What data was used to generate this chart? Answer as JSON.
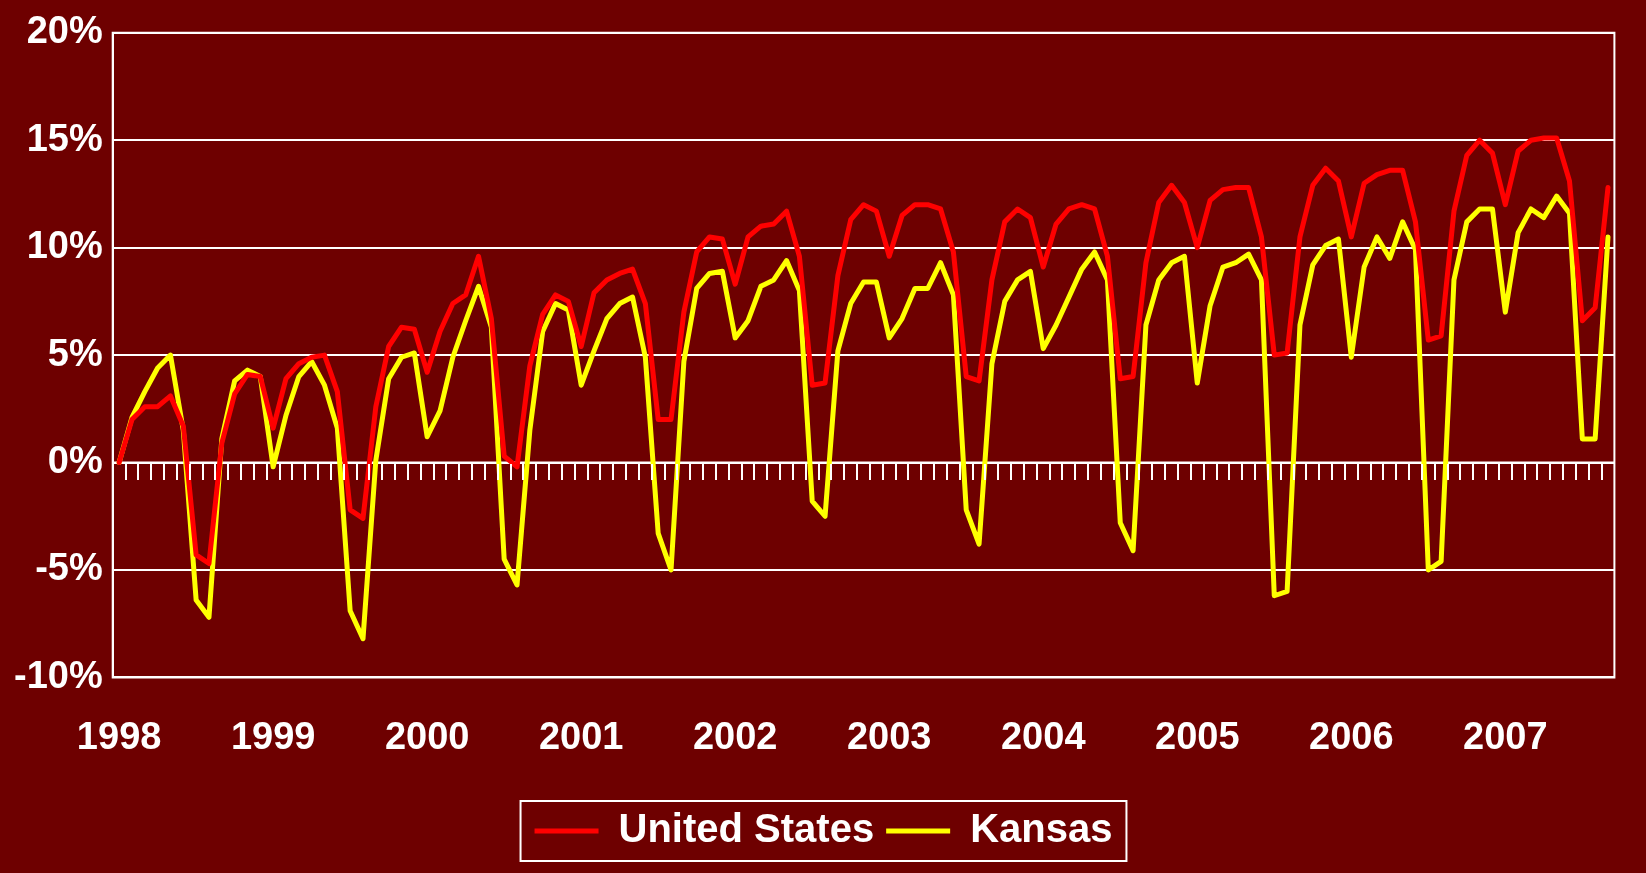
{
  "chart_data": {
    "type": "line",
    "categories": [
      "1998",
      null,
      null,
      null,
      null,
      null,
      null,
      null,
      null,
      null,
      null,
      null,
      "1999",
      null,
      null,
      null,
      null,
      null,
      null,
      null,
      null,
      null,
      null,
      null,
      "2000",
      null,
      null,
      null,
      null,
      null,
      null,
      null,
      null,
      null,
      null,
      null,
      "2001",
      null,
      null,
      null,
      null,
      null,
      null,
      null,
      null,
      null,
      null,
      null,
      "2002",
      null,
      null,
      null,
      null,
      null,
      null,
      null,
      null,
      null,
      null,
      null,
      "2003",
      null,
      null,
      null,
      null,
      null,
      null,
      null,
      null,
      null,
      null,
      null,
      "2004",
      null,
      null,
      null,
      null,
      null,
      null,
      null,
      null,
      null,
      null,
      null,
      "2005",
      null,
      null,
      null,
      null,
      null,
      null,
      null,
      null,
      null,
      null,
      null,
      "2006",
      null,
      null,
      null,
      null,
      null,
      null,
      null,
      null,
      null,
      null,
      null,
      "2007",
      null,
      null,
      null,
      null,
      null,
      null,
      null,
      null
    ],
    "series": [
      {
        "name": "United States",
        "color": "#ff0000",
        "values": [
          0.0,
          2.0,
          2.6,
          2.6,
          3.1,
          1.7,
          -4.3,
          -4.7,
          0.9,
          3.2,
          4.1,
          4.0,
          1.6,
          3.9,
          4.6,
          4.9,
          5.0,
          3.3,
          -2.2,
          -2.6,
          2.6,
          5.4,
          6.3,
          6.2,
          4.2,
          6.1,
          7.4,
          7.8,
          9.6,
          6.7,
          0.3,
          -0.2,
          4.5,
          6.9,
          7.8,
          7.5,
          5.4,
          7.9,
          8.5,
          8.8,
          9.0,
          7.4,
          2.0,
          2.0,
          7.0,
          9.8,
          10.5,
          10.4,
          8.3,
          10.5,
          11.0,
          11.1,
          11.7,
          9.6,
          3.6,
          3.7,
          8.7,
          11.3,
          12.0,
          11.7,
          9.6,
          11.5,
          12.0,
          12.0,
          11.8,
          9.8,
          4.0,
          3.8,
          8.5,
          11.2,
          11.8,
          11.4,
          9.1,
          11.1,
          11.8,
          12.0,
          11.8,
          9.6,
          3.9,
          4.0,
          9.3,
          12.1,
          12.9,
          12.1,
          10.0,
          12.2,
          12.7,
          12.8,
          12.8,
          10.5,
          5.0,
          5.1,
          10.5,
          12.9,
          13.7,
          13.1,
          10.5,
          13.0,
          13.4,
          13.6,
          13.6,
          11.2,
          5.7,
          5.9,
          11.7,
          14.3,
          15.0,
          14.4,
          12.0,
          14.5,
          15.0,
          15.1,
          15.1,
          13.1,
          6.6,
          7.2,
          12.8
        ]
      },
      {
        "name": "Kansas",
        "color": "#ffff00",
        "values": [
          0.0,
          2.1,
          3.3,
          4.4,
          5.0,
          1.5,
          -6.4,
          -7.2,
          1.1,
          3.8,
          4.3,
          4.0,
          -0.2,
          2.2,
          4.0,
          4.7,
          3.6,
          1.6,
          -6.9,
          -8.2,
          0.1,
          3.9,
          4.9,
          5.1,
          1.2,
          2.4,
          4.9,
          6.6,
          8.2,
          6.3,
          -4.5,
          -5.7,
          1.5,
          6.1,
          7.4,
          7.1,
          3.6,
          5.2,
          6.7,
          7.4,
          7.7,
          4.9,
          -3.3,
          -5.0,
          4.7,
          8.1,
          8.8,
          8.9,
          5.8,
          6.6,
          8.2,
          8.5,
          9.4,
          8.0,
          -1.8,
          -2.5,
          5.2,
          7.4,
          8.4,
          8.4,
          5.8,
          6.7,
          8.1,
          8.1,
          9.3,
          7.8,
          -2.2,
          -3.8,
          4.6,
          7.5,
          8.5,
          8.9,
          5.3,
          6.4,
          7.7,
          9.0,
          9.8,
          8.5,
          -2.8,
          -4.1,
          6.4,
          8.5,
          9.3,
          9.6,
          3.7,
          7.3,
          9.1,
          9.3,
          9.7,
          8.5,
          -6.2,
          -6.0,
          6.4,
          9.2,
          10.1,
          10.4,
          4.9,
          9.1,
          10.5,
          9.5,
          11.2,
          9.9,
          -5.0,
          -4.6,
          8.5,
          11.2,
          11.8,
          11.8,
          7.0,
          10.7,
          11.8,
          11.4,
          12.4,
          11.6,
          1.1,
          1.1,
          10.5
        ]
      }
    ],
    "ylim": [
      -10,
      20
    ],
    "yticks": [
      {
        "value": -10,
        "label": "-10%"
      },
      {
        "value": -5,
        "label": "-5%"
      },
      {
        "value": 0,
        "label": "0%"
      },
      {
        "value": 5,
        "label": "5%"
      },
      {
        "value": 10,
        "label": "10%"
      },
      {
        "value": 15,
        "label": "15%"
      },
      {
        "value": 20,
        "label": "20%"
      }
    ],
    "grid": "y",
    "legend": "bottom",
    "marker": "none",
    "line_style": "solid"
  }
}
